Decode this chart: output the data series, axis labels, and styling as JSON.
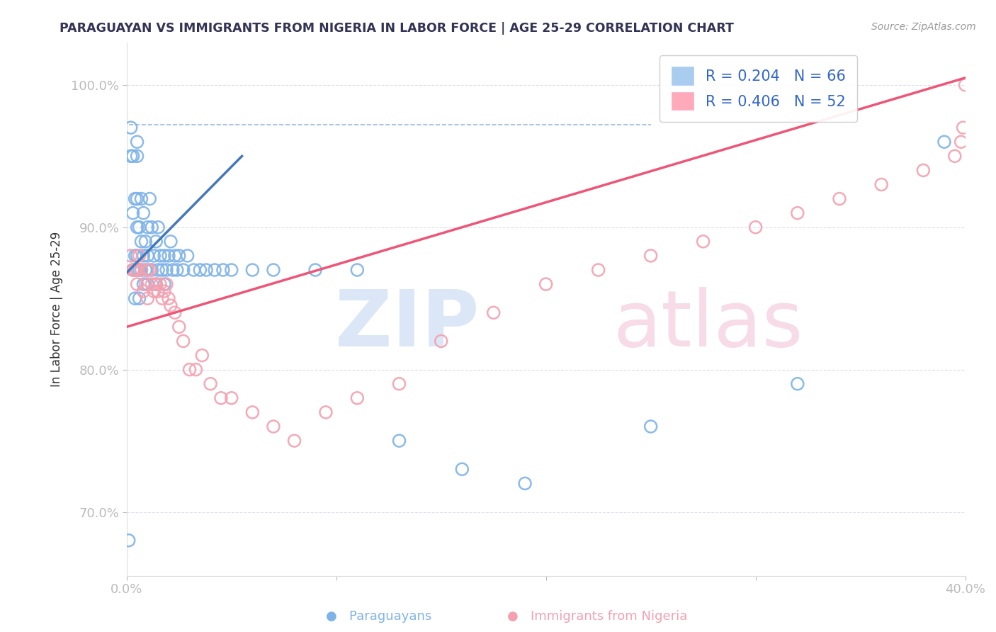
{
  "title": "PARAGUAYAN VS IMMIGRANTS FROM NIGERIA IN LABOR FORCE | AGE 25-29 CORRELATION CHART",
  "source": "Source: ZipAtlas.com",
  "ylabel": "In Labor Force | Age 25-29",
  "xmin": 0.0,
  "xmax": 0.4,
  "ymin": 0.655,
  "ymax": 1.03,
  "yticks": [
    1.0,
    0.9,
    0.8,
    0.7
  ],
  "ytick_labels": [
    "100.0%",
    "90.0%",
    "80.0%",
    "70.0%"
  ],
  "xticks": [
    0.0,
    0.1,
    0.2,
    0.3,
    0.4
  ],
  "xtick_labels": [
    "0.0%",
    "",
    "",
    "",
    "40.0%"
  ],
  "legend_r1": "R = 0.204",
  "legend_n1": "N = 66",
  "legend_r2": "R = 0.406",
  "legend_n2": "N = 52",
  "blue_color": "#7EB3E8",
  "pink_color": "#F4A0B0",
  "blue_line_color": "#4477BB",
  "pink_line_color": "#EE5577",
  "blue_legend_color": "#AACCEE",
  "pink_legend_color": "#FFAABB",
  "blue_points_x": [
    0.001,
    0.002,
    0.002,
    0.003,
    0.003,
    0.003,
    0.004,
    0.004,
    0.004,
    0.005,
    0.005,
    0.005,
    0.005,
    0.005,
    0.005,
    0.006,
    0.006,
    0.006,
    0.007,
    0.007,
    0.007,
    0.008,
    0.008,
    0.008,
    0.009,
    0.009,
    0.01,
    0.01,
    0.01,
    0.011,
    0.012,
    0.012,
    0.013,
    0.014,
    0.014,
    0.015,
    0.015,
    0.016,
    0.017,
    0.018,
    0.018,
    0.019,
    0.02,
    0.021,
    0.022,
    0.023,
    0.024,
    0.025,
    0.027,
    0.029,
    0.032,
    0.035,
    0.038,
    0.042,
    0.046,
    0.05,
    0.06,
    0.07,
    0.09,
    0.11,
    0.13,
    0.16,
    0.19,
    0.25,
    0.32,
    0.39
  ],
  "blue_points_y": [
    0.68,
    0.95,
    0.97,
    0.87,
    0.91,
    0.95,
    0.85,
    0.88,
    0.92,
    0.87,
    0.88,
    0.9,
    0.92,
    0.95,
    0.96,
    0.85,
    0.87,
    0.9,
    0.87,
    0.89,
    0.92,
    0.86,
    0.88,
    0.91,
    0.87,
    0.89,
    0.86,
    0.88,
    0.9,
    0.92,
    0.87,
    0.9,
    0.88,
    0.86,
    0.89,
    0.87,
    0.9,
    0.88,
    0.87,
    0.86,
    0.88,
    0.87,
    0.88,
    0.89,
    0.87,
    0.88,
    0.87,
    0.88,
    0.87,
    0.88,
    0.87,
    0.87,
    0.87,
    0.87,
    0.87,
    0.87,
    0.87,
    0.87,
    0.87,
    0.87,
    0.75,
    0.73,
    0.72,
    0.76,
    0.79,
    0.96
  ],
  "pink_points_x": [
    0.002,
    0.003,
    0.004,
    0.005,
    0.005,
    0.006,
    0.007,
    0.008,
    0.009,
    0.01,
    0.01,
    0.011,
    0.012,
    0.013,
    0.014,
    0.015,
    0.016,
    0.017,
    0.018,
    0.019,
    0.02,
    0.021,
    0.023,
    0.025,
    0.027,
    0.03,
    0.033,
    0.036,
    0.04,
    0.045,
    0.05,
    0.06,
    0.07,
    0.08,
    0.095,
    0.11,
    0.13,
    0.15,
    0.175,
    0.2,
    0.225,
    0.25,
    0.275,
    0.3,
    0.32,
    0.34,
    0.36,
    0.38,
    0.395,
    0.398,
    0.399,
    0.4
  ],
  "pink_points_y": [
    0.88,
    0.87,
    0.87,
    0.87,
    0.86,
    0.88,
    0.87,
    0.855,
    0.86,
    0.87,
    0.85,
    0.87,
    0.86,
    0.855,
    0.86,
    0.855,
    0.86,
    0.85,
    0.855,
    0.86,
    0.85,
    0.845,
    0.84,
    0.83,
    0.82,
    0.8,
    0.8,
    0.81,
    0.79,
    0.78,
    0.78,
    0.77,
    0.76,
    0.75,
    0.77,
    0.78,
    0.79,
    0.82,
    0.84,
    0.86,
    0.87,
    0.88,
    0.89,
    0.9,
    0.91,
    0.92,
    0.93,
    0.94,
    0.95,
    0.96,
    0.97,
    1.0
  ],
  "blue_line_x": [
    0.0,
    0.055
  ],
  "blue_line_y": [
    0.868,
    0.95
  ],
  "pink_line_x": [
    0.0,
    0.4
  ],
  "pink_line_y": [
    0.83,
    1.005
  ],
  "dash_line_x": [
    0.001,
    0.25
  ],
  "dash_line_y": [
    0.972,
    0.972
  ]
}
